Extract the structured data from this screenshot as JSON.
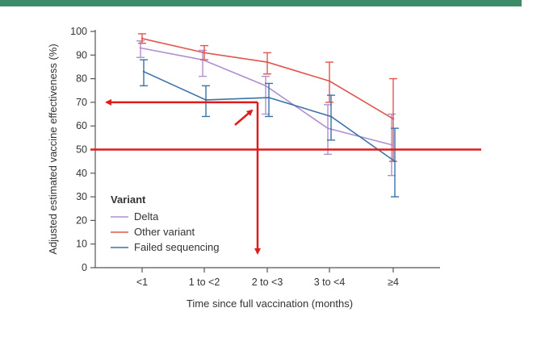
{
  "colors": {
    "header_bar": "#3d8c68",
    "delta": "#b08fd0",
    "other": "#e0554e",
    "failed": "#3a72a8",
    "annotation": "#e01b1b",
    "axis": "#555555"
  },
  "chart_data": {
    "type": "line",
    "title": "",
    "xlabel": "Time since full vaccination (months)",
    "ylabel": "Adjusted estimated vaccine effectiveness (%)",
    "categories": [
      "<1",
      "1 to <2",
      "2 to <3",
      "3 to <4",
      "≥4"
    ],
    "ylim": [
      0,
      100
    ],
    "yticks": [
      "0",
      "10",
      "20",
      "30",
      "40",
      "50",
      "60",
      "70",
      "80",
      "90",
      "100"
    ],
    "legend_title": "Variant",
    "legend_position": "lower-left",
    "series": [
      {
        "name": "Delta",
        "color_key": "delta",
        "values": [
          93,
          88,
          77,
          59,
          52
        ],
        "ci_low": [
          89,
          81,
          65,
          48,
          39
        ],
        "ci_high": [
          96,
          92,
          81,
          69,
          65
        ]
      },
      {
        "name": "Other variant",
        "color_key": "other",
        "values": [
          97,
          91,
          87,
          79,
          63
        ],
        "ci_low": [
          95,
          88,
          82,
          70,
          45
        ],
        "ci_high": [
          99,
          94,
          91,
          87,
          80
        ]
      },
      {
        "name": "Failed sequencing",
        "color_key": "failed",
        "values": [
          83,
          71,
          72,
          64,
          45
        ],
        "ci_low": [
          77,
          64,
          64,
          54,
          30
        ],
        "ci_high": [
          88,
          77,
          78,
          73,
          59
        ]
      }
    ],
    "annotations": {
      "horizontal_line_value": 50,
      "target_category": "2 to <3",
      "target_value": 70
    }
  }
}
